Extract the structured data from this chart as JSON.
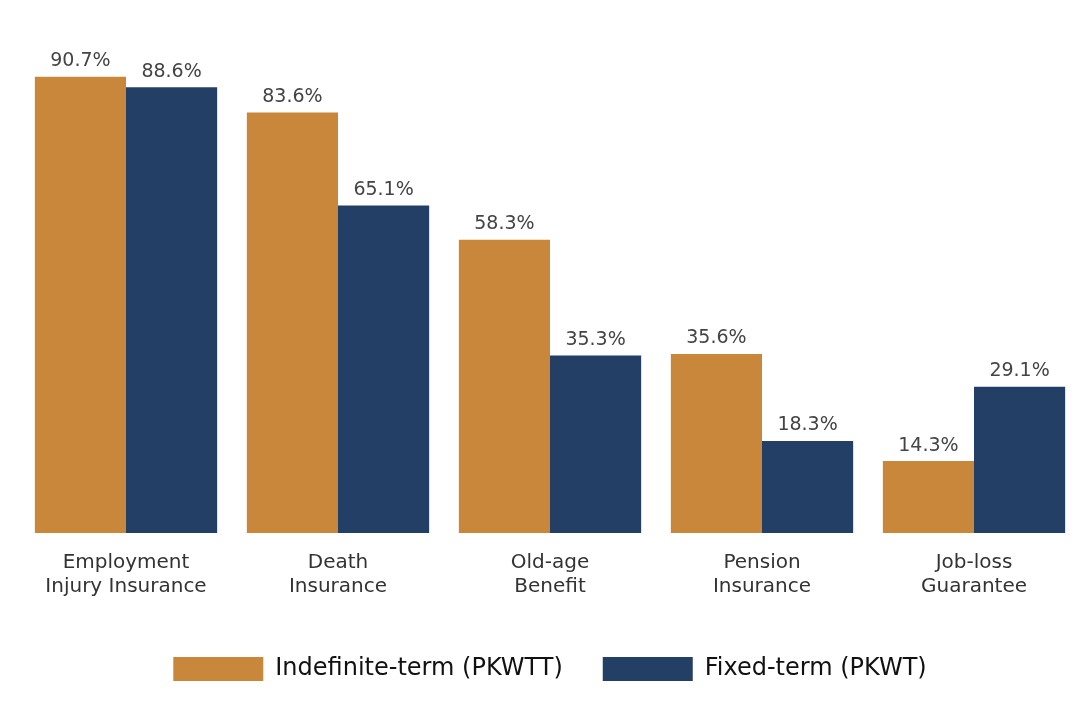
{
  "chart_data": {
    "type": "bar",
    "categories": [
      "Employment Injury Insurance",
      "Death Insurance",
      "Old-age Benefit",
      "Pension Insurance",
      "Job-loss Guarantee"
    ],
    "series": [
      {
        "name": "Indefinite-term (PKWTT)",
        "color": "#c8873a",
        "values": [
          90.7,
          83.6,
          58.3,
          35.6,
          14.3
        ],
        "value_labels": [
          "90.7%",
          "83.6%",
          "58.3%",
          "35.6%",
          "14.3%"
        ]
      },
      {
        "name": "Fixed-term (PKWT)",
        "color": "#243f66",
        "values": [
          88.6,
          65.1,
          35.3,
          18.3,
          29.1
        ],
        "value_labels": [
          "88.6%",
          "65.1%",
          "35.3%",
          "18.3%",
          "29.1%"
        ]
      }
    ],
    "grid": false,
    "legend": "bottom"
  }
}
